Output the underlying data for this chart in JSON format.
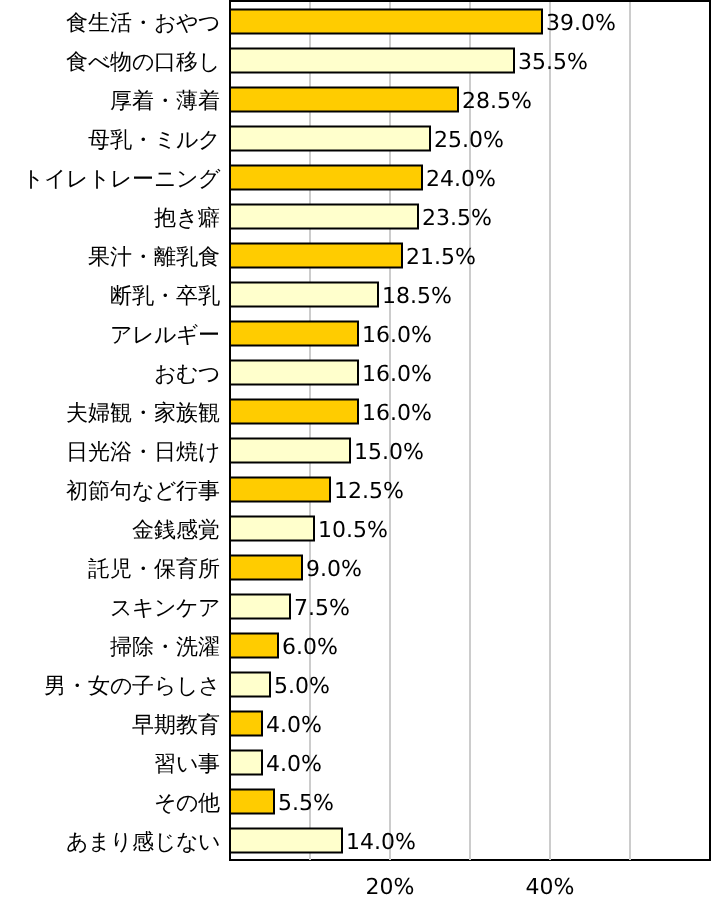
{
  "chart_data": {
    "type": "bar",
    "orientation": "horizontal",
    "categories": [
      "食生活・おやつ",
      "食べ物の口移し",
      "厚着・薄着",
      "母乳・ミルク",
      "トイレトレーニング",
      "抱き癖",
      "果汁・離乳食",
      "断乳・卒乳",
      "アレルギー",
      "おむつ",
      "夫婦観・家族観",
      "日光浴・日焼け",
      "初節句など行事",
      "金銭感覚",
      "託児・保育所",
      "スキンケア",
      "掃除・洗濯",
      "男・女の子らしさ",
      "早期教育",
      "習い事",
      "その他",
      "あまり感じない"
    ],
    "values": [
      39.0,
      35.5,
      28.5,
      25.0,
      24.0,
      23.5,
      21.5,
      18.5,
      16.0,
      16.0,
      16.0,
      15.0,
      12.5,
      10.5,
      9.0,
      7.5,
      6.0,
      5.0,
      4.0,
      4.0,
      5.5,
      14.0
    ],
    "value_labels": [
      "39.0%",
      "35.5%",
      "28.5%",
      "25.0%",
      "24.0%",
      "23.5%",
      "21.5%",
      "18.5%",
      "16.0%",
      "16.0%",
      "16.0%",
      "15.0%",
      "12.5%",
      "10.5%",
      "9.0%",
      "7.5%",
      "6.0%",
      "5.0%",
      "4.0%",
      "4.0%",
      "5.5%",
      "14.0%"
    ],
    "colors": [
      "#ffcc00",
      "#ffffcc",
      "#ffcc00",
      "#ffffcc",
      "#ffcc00",
      "#ffffcc",
      "#ffcc00",
      "#ffffcc",
      "#ffcc00",
      "#ffffcc",
      "#ffcc00",
      "#ffffcc",
      "#ffcc00",
      "#ffffcc",
      "#ffcc00",
      "#ffffcc",
      "#ffcc00",
      "#ffffcc",
      "#ffcc00",
      "#ffffcc",
      "#ffcc00",
      "#ffffcc"
    ],
    "xlim": [
      0,
      60
    ],
    "xticks": [
      {
        "value": 10,
        "label": null
      },
      {
        "value": 20,
        "label": "20%"
      },
      {
        "value": 30,
        "label": null
      },
      {
        "value": 40,
        "label": "40%"
      },
      {
        "value": 50,
        "label": null
      }
    ],
    "grid": "x"
  }
}
